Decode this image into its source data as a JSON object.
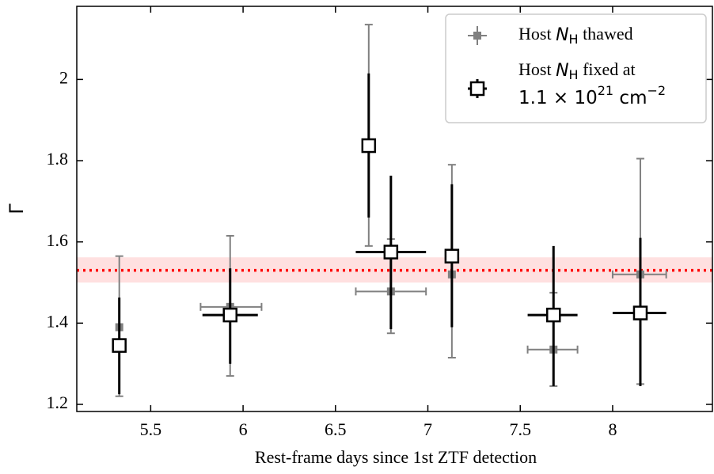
{
  "chart_data": {
    "type": "errorbar",
    "xlabel": "Rest-frame days since 1st ZTF detection",
    "ylabel": "Γ",
    "xlim": [
      5.1,
      8.54
    ],
    "ylim": [
      1.1825,
      2.18
    ],
    "xticks": [
      5.5,
      6.0,
      6.5,
      7.0,
      7.5,
      8.0
    ],
    "yticks": [
      1.2,
      1.4,
      1.6,
      1.8,
      2.0
    ],
    "reference": {
      "value": 1.53,
      "low": 1.5,
      "high": 1.562,
      "color": "#ff0000"
    },
    "legend": "upper right",
    "series": [
      {
        "name": [
          "Host ",
          "N",
          "H",
          " thawed"
        ],
        "color": "#808080",
        "x": [
          5.33,
          5.93,
          6.68,
          6.8,
          7.13,
          7.68,
          8.15
        ],
        "values": [
          1.39,
          1.44,
          1.845,
          1.478,
          1.52,
          1.335,
          1.52
        ],
        "y_low": [
          1.22,
          1.27,
          1.59,
          1.375,
          1.315,
          1.245,
          1.25
        ],
        "y_high": [
          1.565,
          1.615,
          2.135,
          1.607,
          1.79,
          1.475,
          1.805
        ],
        "x_low": [
          null,
          5.77,
          null,
          6.61,
          null,
          7.54,
          8.0
        ],
        "x_high": [
          null,
          6.1,
          null,
          6.99,
          null,
          7.81,
          8.29
        ]
      },
      {
        "name": [
          "Host ",
          "N",
          "H",
          " fixed at",
          "1.1 × 10",
          "21",
          " cm",
          "−2"
        ],
        "color": "#000000",
        "x": [
          5.33,
          5.93,
          6.68,
          6.8,
          7.13,
          7.68,
          8.15
        ],
        "values": [
          1.345,
          1.42,
          1.837,
          1.575,
          1.565,
          1.42,
          1.425
        ],
        "y_low": [
          1.225,
          1.3,
          1.66,
          1.385,
          1.39,
          1.245,
          1.245
        ],
        "y_high": [
          1.463,
          1.535,
          2.015,
          1.763,
          1.742,
          1.59,
          1.61
        ],
        "x_low": [
          null,
          5.78,
          null,
          6.61,
          null,
          7.54,
          8.0
        ],
        "x_high": [
          null,
          6.08,
          null,
          6.99,
          null,
          7.81,
          8.29
        ]
      }
    ]
  }
}
